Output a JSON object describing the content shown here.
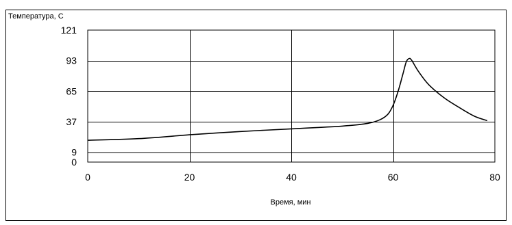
{
  "chart_data": {
    "type": "line",
    "title": "",
    "ylabel": "Температура, С",
    "xlabel": "Время, мин",
    "xlim": [
      0,
      80
    ],
    "ylim": [
      0,
      121
    ],
    "x_ticks": [
      0,
      20,
      40,
      60,
      80
    ],
    "y_ticks": [
      0,
      9,
      37,
      65,
      93,
      121
    ],
    "grid": true,
    "legend": "none",
    "series": [
      {
        "color": "#000000",
        "points": [
          [
            0,
            20
          ],
          [
            10,
            21.5
          ],
          [
            20,
            25
          ],
          [
            30,
            28
          ],
          [
            40,
            30.5
          ],
          [
            50,
            33
          ],
          [
            55,
            35.5
          ],
          [
            57.5,
            39
          ],
          [
            59,
            44
          ],
          [
            60,
            52
          ],
          [
            61,
            65
          ],
          [
            62,
            82
          ],
          [
            62.6,
            92
          ],
          [
            63.2,
            95
          ],
          [
            63.7,
            93
          ],
          [
            65,
            83
          ],
          [
            67,
            71
          ],
          [
            70,
            59
          ],
          [
            73,
            50
          ],
          [
            76,
            42
          ],
          [
            78.5,
            38
          ]
        ]
      }
    ]
  }
}
